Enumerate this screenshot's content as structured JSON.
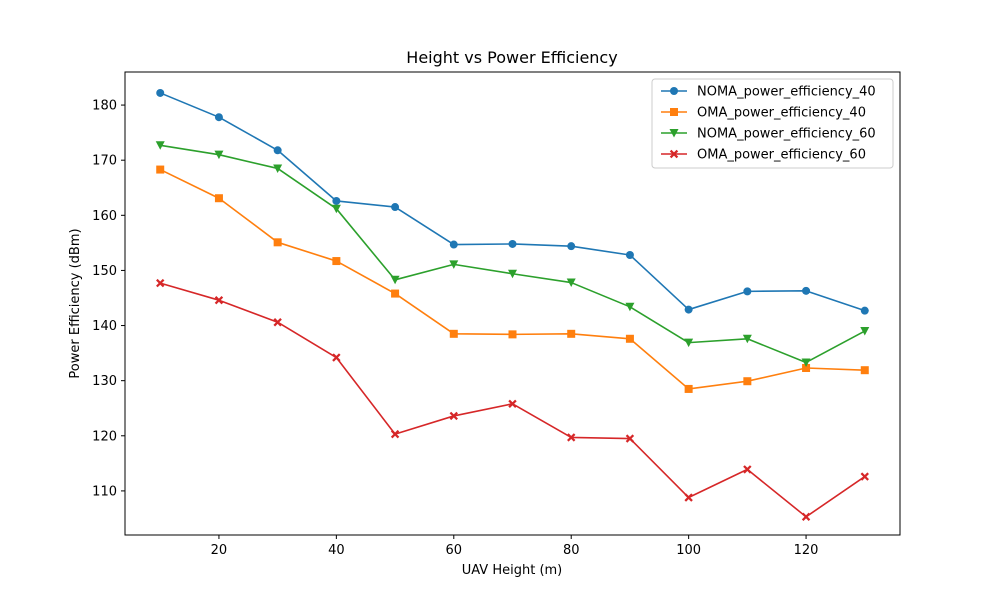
{
  "chart_data": {
    "type": "line",
    "title": "Height vs Power Efficiency",
    "xlabel": "UAV Height (m)",
    "ylabel": "Power Efficiency (dBm)",
    "xlim": [
      4,
      136
    ],
    "ylim": [
      102,
      186
    ],
    "xticks": [
      20,
      40,
      60,
      80,
      100,
      120
    ],
    "yticks": [
      110,
      120,
      130,
      140,
      150,
      160,
      170,
      180
    ],
    "grid": false,
    "legend_position": "top-right",
    "x": [
      10,
      20,
      30,
      40,
      50,
      60,
      70,
      80,
      90,
      100,
      110,
      120,
      130
    ],
    "series": [
      {
        "name": "NOMA_power_efficiency_40",
        "color": "#1f77b4",
        "marker": "circle",
        "values": [
          182.2,
          177.8,
          171.8,
          162.6,
          161.5,
          154.7,
          154.8,
          154.4,
          152.8,
          142.9,
          146.2,
          146.3,
          142.7
        ]
      },
      {
        "name": "OMA_power_efficiency_40",
        "color": "#ff7f0e",
        "marker": "square",
        "values": [
          168.3,
          163.1,
          155.1,
          151.7,
          145.8,
          138.5,
          138.4,
          138.5,
          137.6,
          128.5,
          129.9,
          132.3,
          131.9
        ]
      },
      {
        "name": "NOMA_power_efficiency_60",
        "color": "#2ca02c",
        "marker": "triangle-down",
        "values": [
          172.7,
          171.0,
          168.5,
          161.2,
          148.3,
          151.1,
          149.4,
          147.8,
          143.4,
          136.9,
          137.6,
          133.3,
          139.0
        ]
      },
      {
        "name": "OMA_power_efficiency_60",
        "color": "#d62728",
        "marker": "x",
        "values": [
          147.7,
          144.6,
          140.6,
          134.2,
          120.3,
          123.6,
          125.8,
          119.7,
          119.5,
          108.8,
          113.9,
          105.3,
          112.6
        ]
      }
    ]
  }
}
